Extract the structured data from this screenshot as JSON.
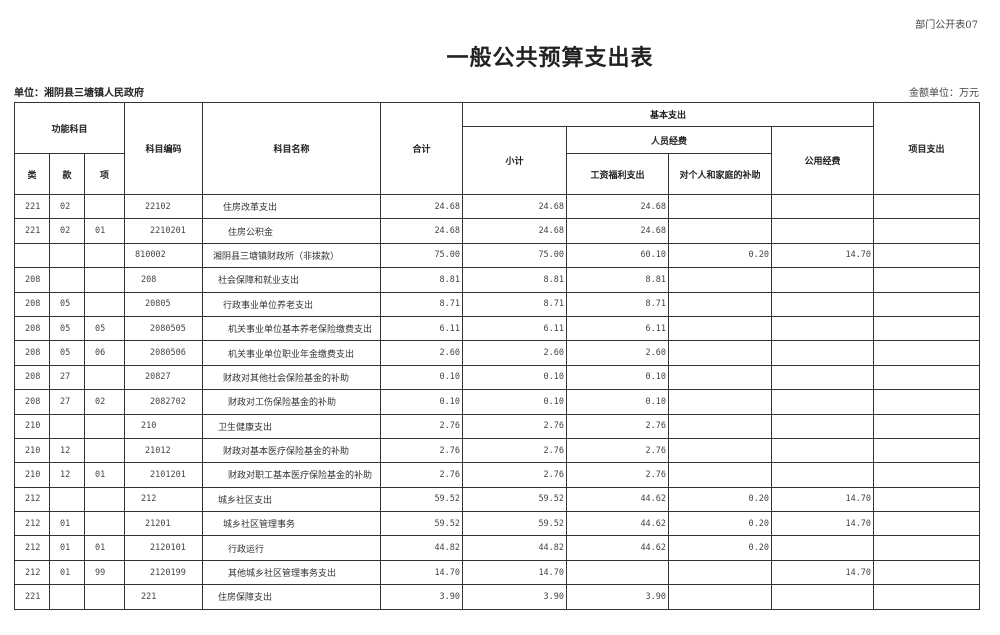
{
  "form_number": "部门公开表07",
  "title": "一般公共预算支出表",
  "unit_label": "单位：湘阴县三塘镇人民政府",
  "money_unit": "金额单位：万元",
  "headers": {
    "functional_subject": "功能科目",
    "lei": "类",
    "kuan": "款",
    "xiang": "项",
    "subject_code": "科目编码",
    "subject_name": "科目名称",
    "total": "合计",
    "basic_expenditure": "基本支出",
    "subtotal": "小计",
    "personnel": "人员经费",
    "salary_welfare": "工资福利支出",
    "family_subsidy": "对个人和家庭的补助",
    "public_funds": "公用经费",
    "project_expenditure": "项目支出"
  },
  "rows": [
    {
      "lei": "221",
      "kuan": "02",
      "xiang": "",
      "code": "22102",
      "name": "住房改革支出",
      "total": "24.68",
      "subtotal": "24.68",
      "salary": "24.68",
      "family": "",
      "public": "",
      "project": ""
    },
    {
      "lei": "221",
      "kuan": "02",
      "xiang": "01",
      "code": "2210201",
      "name": "住房公积金",
      "total": "24.68",
      "subtotal": "24.68",
      "salary": "24.68",
      "family": "",
      "public": "",
      "project": ""
    },
    {
      "lei": "",
      "kuan": "",
      "xiang": "",
      "code": "810002",
      "name": "湘阴县三塘镇财政所（非拨款）",
      "total": "75.00",
      "subtotal": "75.00",
      "salary": "60.10",
      "family": "0.20",
      "public": "14.70",
      "project": ""
    },
    {
      "lei": "208",
      "kuan": "",
      "xiang": "",
      "code": "208",
      "name": "社会保障和就业支出",
      "total": "8.81",
      "subtotal": "8.81",
      "salary": "8.81",
      "family": "",
      "public": "",
      "project": ""
    },
    {
      "lei": "208",
      "kuan": "05",
      "xiang": "",
      "code": "20805",
      "name": "行政事业单位养老支出",
      "total": "8.71",
      "subtotal": "8.71",
      "salary": "8.71",
      "family": "",
      "public": "",
      "project": ""
    },
    {
      "lei": "208",
      "kuan": "05",
      "xiang": "05",
      "code": "2080505",
      "name": "机关事业单位基本养老保险缴费支出",
      "total": "6.11",
      "subtotal": "6.11",
      "salary": "6.11",
      "family": "",
      "public": "",
      "project": ""
    },
    {
      "lei": "208",
      "kuan": "05",
      "xiang": "06",
      "code": "2080506",
      "name": "机关事业单位职业年金缴费支出",
      "total": "2.60",
      "subtotal": "2.60",
      "salary": "2.60",
      "family": "",
      "public": "",
      "project": ""
    },
    {
      "lei": "208",
      "kuan": "27",
      "xiang": "",
      "code": "20827",
      "name": "财政对其他社会保险基金的补助",
      "total": "0.10",
      "subtotal": "0.10",
      "salary": "0.10",
      "family": "",
      "public": "",
      "project": ""
    },
    {
      "lei": "208",
      "kuan": "27",
      "xiang": "02",
      "code": "2082702",
      "name": "财政对工伤保险基金的补助",
      "total": "0.10",
      "subtotal": "0.10",
      "salary": "0.10",
      "family": "",
      "public": "",
      "project": ""
    },
    {
      "lei": "210",
      "kuan": "",
      "xiang": "",
      "code": "210",
      "name": "卫生健康支出",
      "total": "2.76",
      "subtotal": "2.76",
      "salary": "2.76",
      "family": "",
      "public": "",
      "project": ""
    },
    {
      "lei": "210",
      "kuan": "12",
      "xiang": "",
      "code": "21012",
      "name": "财政对基本医疗保险基金的补助",
      "total": "2.76",
      "subtotal": "2.76",
      "salary": "2.76",
      "family": "",
      "public": "",
      "project": ""
    },
    {
      "lei": "210",
      "kuan": "12",
      "xiang": "01",
      "code": "2101201",
      "name": "财政对职工基本医疗保险基金的补助",
      "total": "2.76",
      "subtotal": "2.76",
      "salary": "2.76",
      "family": "",
      "public": "",
      "project": ""
    },
    {
      "lei": "212",
      "kuan": "",
      "xiang": "",
      "code": "212",
      "name": "城乡社区支出",
      "total": "59.52",
      "subtotal": "59.52",
      "salary": "44.62",
      "family": "0.20",
      "public": "14.70",
      "project": ""
    },
    {
      "lei": "212",
      "kuan": "01",
      "xiang": "",
      "code": "21201",
      "name": "城乡社区管理事务",
      "total": "59.52",
      "subtotal": "59.52",
      "salary": "44.62",
      "family": "0.20",
      "public": "14.70",
      "project": ""
    },
    {
      "lei": "212",
      "kuan": "01",
      "xiang": "01",
      "code": "2120101",
      "name": "行政运行",
      "total": "44.82",
      "subtotal": "44.82",
      "salary": "44.62",
      "family": "0.20",
      "public": "",
      "project": ""
    },
    {
      "lei": "212",
      "kuan": "01",
      "xiang": "99",
      "code": "2120199",
      "name": "其他城乡社区管理事务支出",
      "total": "14.70",
      "subtotal": "14.70",
      "salary": "",
      "family": "",
      "public": "14.70",
      "project": ""
    },
    {
      "lei": "221",
      "kuan": "",
      "xiang": "",
      "code": "221",
      "name": "住房保障支出",
      "total": "3.90",
      "subtotal": "3.90",
      "salary": "3.90",
      "family": "",
      "public": "",
      "project": ""
    }
  ]
}
